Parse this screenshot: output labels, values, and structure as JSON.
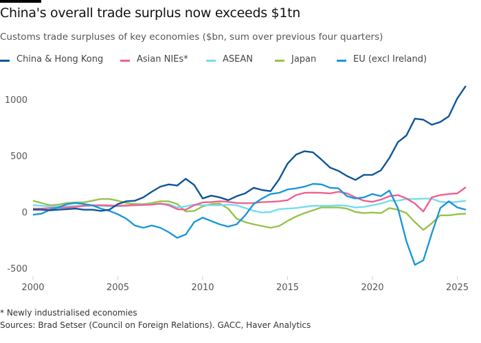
{
  "title": "China's overall trade surplus now exceeds $1tn",
  "subtitle": "Customs trade surpluses of key economies ($bn, sum over previous four quarters)",
  "footnote": "* Newly industrialised economies",
  "sources": "Sources: Brad Setser (Council on Foreign Relations). GACC, Haver Analytics",
  "chart_data": {
    "type": "line",
    "title": "China's overall trade surplus now exceeds $1tn",
    "subtitle": "Customs trade surpluses of key economies ($bn, sum over previous four quarters)",
    "xlim": [
      2000,
      2025.6
    ],
    "ylim": [
      -550,
      1150
    ],
    "x_ticks": [
      2000,
      2005,
      2010,
      2015,
      2020,
      2025
    ],
    "x_tick_labels": [
      "2000",
      "2005",
      "2010",
      "2015",
      "2020",
      "2025"
    ],
    "y_ticks": [
      -500,
      0,
      500,
      1000
    ],
    "y_tick_labels": [
      "-500",
      "0",
      "500",
      "1000"
    ],
    "grid": false,
    "legend_position": "top",
    "x": [
      2000,
      2000.5,
      2001,
      2001.5,
      2002,
      2002.5,
      2003,
      2003.5,
      2004,
      2004.5,
      2005,
      2005.5,
      2006,
      2006.5,
      2007,
      2007.5,
      2008,
      2008.5,
      2009,
      2009.5,
      2010,
      2010.5,
      2011,
      2011.5,
      2012,
      2012.5,
      2013,
      2013.5,
      2014,
      2014.5,
      2015,
      2015.5,
      2016,
      2016.5,
      2017,
      2017.5,
      2018,
      2018.5,
      2019,
      2019.5,
      2020,
      2020.5,
      2021,
      2021.5,
      2022,
      2022.5,
      2023,
      2023.5,
      2024,
      2024.5,
      2025,
      2025.5
    ],
    "series": [
      {
        "name": "China & Hong Kong",
        "color": "#0d5499",
        "values": [
          20,
          20,
          15,
          20,
          25,
          30,
          20,
          20,
          10,
          20,
          70,
          95,
          100,
          130,
          180,
          225,
          245,
          235,
          295,
          240,
          120,
          145,
          130,
          105,
          140,
          165,
          215,
          195,
          185,
          290,
          430,
          510,
          540,
          530,
          465,
          395,
          365,
          320,
          285,
          330,
          330,
          370,
          480,
          620,
          680,
          830,
          820,
          775,
          800,
          850,
          1010,
          1120
        ]
      },
      {
        "name": "Asian NIEs*",
        "color": "#f0608e",
        "values": [
          30,
          30,
          35,
          38,
          40,
          45,
          55,
          60,
          60,
          58,
          55,
          58,
          60,
          62,
          65,
          75,
          60,
          25,
          20,
          60,
          85,
          88,
          95,
          90,
          80,
          78,
          80,
          88,
          90,
          95,
          105,
          150,
          170,
          172,
          170,
          165,
          180,
          165,
          130,
          100,
          90,
          110,
          140,
          150,
          120,
          75,
          5,
          130,
          150,
          160,
          165,
          220
        ]
      },
      {
        "name": "ASEAN",
        "color": "#75dcee",
        "values": [
          60,
          55,
          50,
          50,
          50,
          52,
          55,
          55,
          55,
          52,
          50,
          55,
          60,
          65,
          70,
          70,
          70,
          40,
          50,
          65,
          60,
          60,
          60,
          65,
          60,
          35,
          10,
          -5,
          0,
          25,
          30,
          35,
          45,
          55,
          55,
          55,
          60,
          55,
          40,
          45,
          60,
          75,
          100,
          100,
          115,
          115,
          118,
          118,
          90,
          85,
          90,
          100
        ]
      },
      {
        "name": "Japan",
        "color": "#96c24a",
        "values": [
          100,
          80,
          60,
          65,
          80,
          85,
          85,
          100,
          115,
          115,
          100,
          80,
          70,
          70,
          80,
          95,
          95,
          70,
          5,
          10,
          50,
          70,
          75,
          30,
          -60,
          -90,
          -110,
          -125,
          -140,
          -125,
          -80,
          -40,
          -10,
          15,
          40,
          40,
          40,
          30,
          0,
          -10,
          -5,
          -10,
          35,
          20,
          -10,
          -90,
          -160,
          -100,
          -30,
          -30,
          -20,
          -15
        ]
      },
      {
        "name": "EU (excl Ireland)",
        "color": "#1b96d9",
        "values": [
          -25,
          -15,
          20,
          40,
          70,
          80,
          70,
          60,
          30,
          10,
          -20,
          -60,
          -120,
          -140,
          -120,
          -140,
          -180,
          -230,
          -200,
          -90,
          -50,
          -80,
          -110,
          -130,
          -110,
          -30,
          70,
          120,
          160,
          170,
          200,
          210,
          225,
          250,
          245,
          215,
          210,
          140,
          120,
          130,
          160,
          140,
          190,
          35,
          -260,
          -470,
          -430,
          -190,
          35,
          95,
          40,
          20
        ]
      }
    ]
  }
}
